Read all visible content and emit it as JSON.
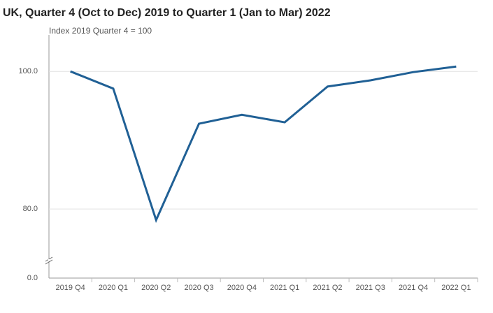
{
  "chart_data": {
    "type": "line",
    "title": "UK, Quarter 4 (Oct to Dec) 2019 to Quarter 1 (Jan to Mar) 2022",
    "subtitle": "Index 2019 Quarter 4 = 100",
    "categories": [
      "2019 Q4",
      "2020 Q1",
      "2020 Q2",
      "2020 Q3",
      "2020 Q4",
      "2021 Q1",
      "2021 Q2",
      "2021 Q3",
      "2021 Q4",
      "2022 Q1"
    ],
    "series": [
      {
        "color": "#206095",
        "values": [
          100.0,
          97.5,
          78.4,
          92.4,
          93.7,
          92.6,
          97.8,
          98.7,
          99.9,
          100.7
        ]
      }
    ],
    "ylim": [
      0,
      105.3
    ],
    "y_break": [
      0,
      72.5
    ],
    "yticks": [
      {
        "value": 100,
        "label": "100.0"
      },
      {
        "value": 80,
        "label": "80.0"
      },
      {
        "value": 0,
        "label": "0.0"
      }
    ],
    "grid": true
  }
}
